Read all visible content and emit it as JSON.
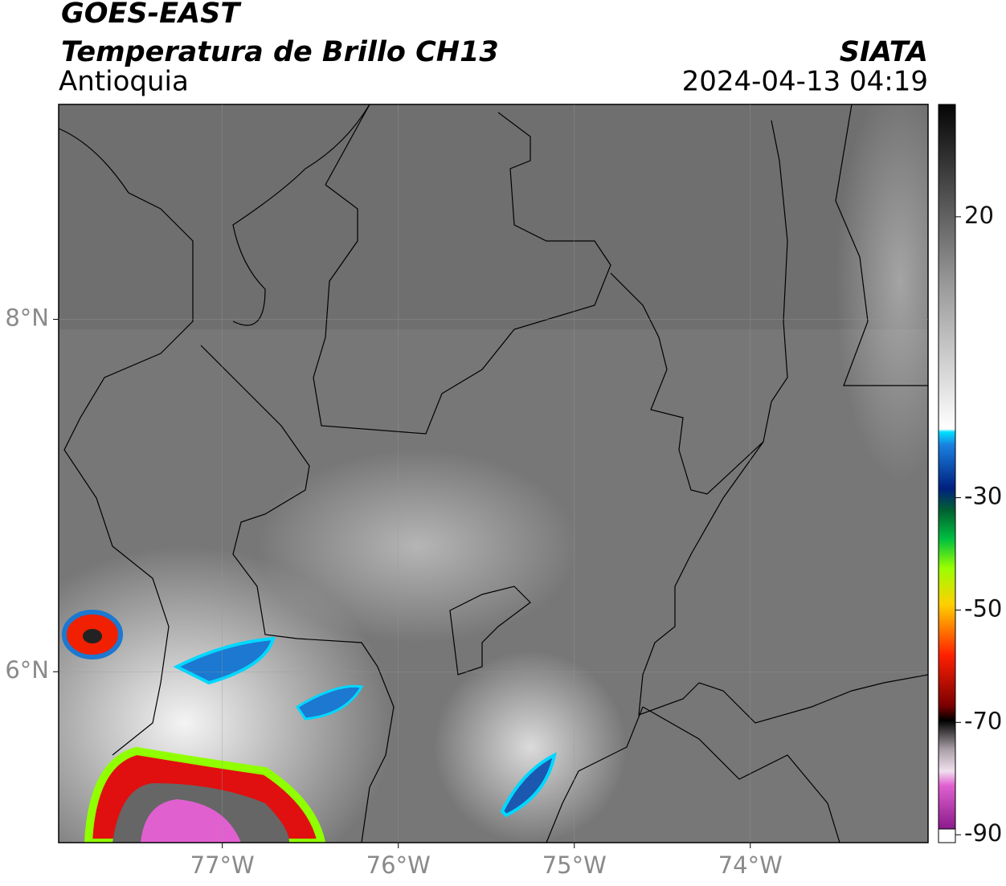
{
  "header": {
    "satellite": "GOES-EAST",
    "product": "Temperatura de Brillo CH13",
    "region": "Antioquia",
    "agency": "SIATA",
    "timestamp": "2024-04-13 04:19"
  },
  "map": {
    "xlim": [
      -77.93,
      -72.99
    ],
    "ylim": [
      5.03,
      9.22
    ],
    "xticks": [
      {
        "value": -77,
        "label": "77°W"
      },
      {
        "value": -76,
        "label": "76°W"
      },
      {
        "value": -75,
        "label": "75°W"
      },
      {
        "value": -74,
        "label": "74°W"
      }
    ],
    "yticks": [
      {
        "value": 6,
        "label": "6°N"
      },
      {
        "value": 8,
        "label": "8°N"
      }
    ],
    "grid": true
  },
  "colorbar": {
    "clim": [
      -91.4,
      40
    ],
    "ticks": [
      20,
      -30,
      -50,
      -70,
      -90
    ]
  }
}
